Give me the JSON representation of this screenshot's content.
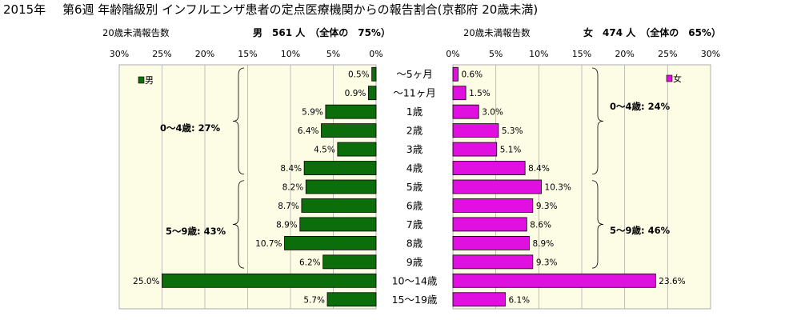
{
  "title": {
    "year": "2015年",
    "main": "第6週 年齢階級別 インフルエンザ患者の定点医療機関からの報告割合(京都府 20歳未満)"
  },
  "male_header": {
    "left": "20歳未満報告数",
    "right": "男　561 人　（全体の　75%）"
  },
  "female_header": {
    "left": "20歳未満報告数",
    "right": "女　474 人　（全体の　65%）"
  },
  "groups": {
    "male_0_4": "0～4歳: 27%",
    "male_5_9": "5～9歳: 43%",
    "female_0_4": "0～4歳: 24%",
    "female_5_9": "5～9歳: 46%"
  },
  "chart_data": {
    "type": "bar",
    "orientation": "horizontal-butterfly",
    "categories": [
      "～5ヶ月",
      "～11ヶ月",
      "1歳",
      "2歳",
      "3歳",
      "4歳",
      "5歳",
      "6歳",
      "7歳",
      "8歳",
      "9歳",
      "10～14歳",
      "15～19歳"
    ],
    "series": [
      {
        "name": "男",
        "values": [
          0.5,
          0.9,
          5.9,
          6.4,
          4.5,
          8.4,
          8.2,
          8.7,
          8.9,
          10.7,
          6.2,
          25.0,
          5.7
        ],
        "color": "#0b6e0b"
      },
      {
        "name": "女",
        "values": [
          0.6,
          1.5,
          3.0,
          5.3,
          5.1,
          8.4,
          10.3,
          9.3,
          8.6,
          8.9,
          9.3,
          23.6,
          6.1
        ],
        "color": "#e010e0"
      }
    ],
    "value_labels": {
      "男": [
        "0.5%",
        "0.9%",
        "5.9%",
        "6.4%",
        "4.5%",
        "8.4%",
        "8.2%",
        "8.7%",
        "8.9%",
        "10.7%",
        "6.2%",
        "25.0%",
        "5.7%"
      ],
      "女": [
        "0.6%",
        "1.5%",
        "3.0%",
        "5.3%",
        "5.1%",
        "8.4%",
        "10.3%",
        "9.3%",
        "8.6%",
        "8.9%",
        "9.3%",
        "23.6%",
        "6.1%"
      ]
    },
    "xlim": [
      0,
      30
    ],
    "xticks": [
      0,
      5,
      10,
      15,
      20,
      25,
      30
    ],
    "tick_labels": [
      "0%",
      "5%",
      "10%",
      "15%",
      "20%",
      "25%",
      "30%"
    ],
    "grid": true,
    "legend": {
      "male": "男",
      "female": "女",
      "male_position": "top-left",
      "female_position": "top-right"
    },
    "plot_background": "#fdfde6",
    "male_color": "#0b6e0b",
    "female_color": "#e010e0"
  }
}
